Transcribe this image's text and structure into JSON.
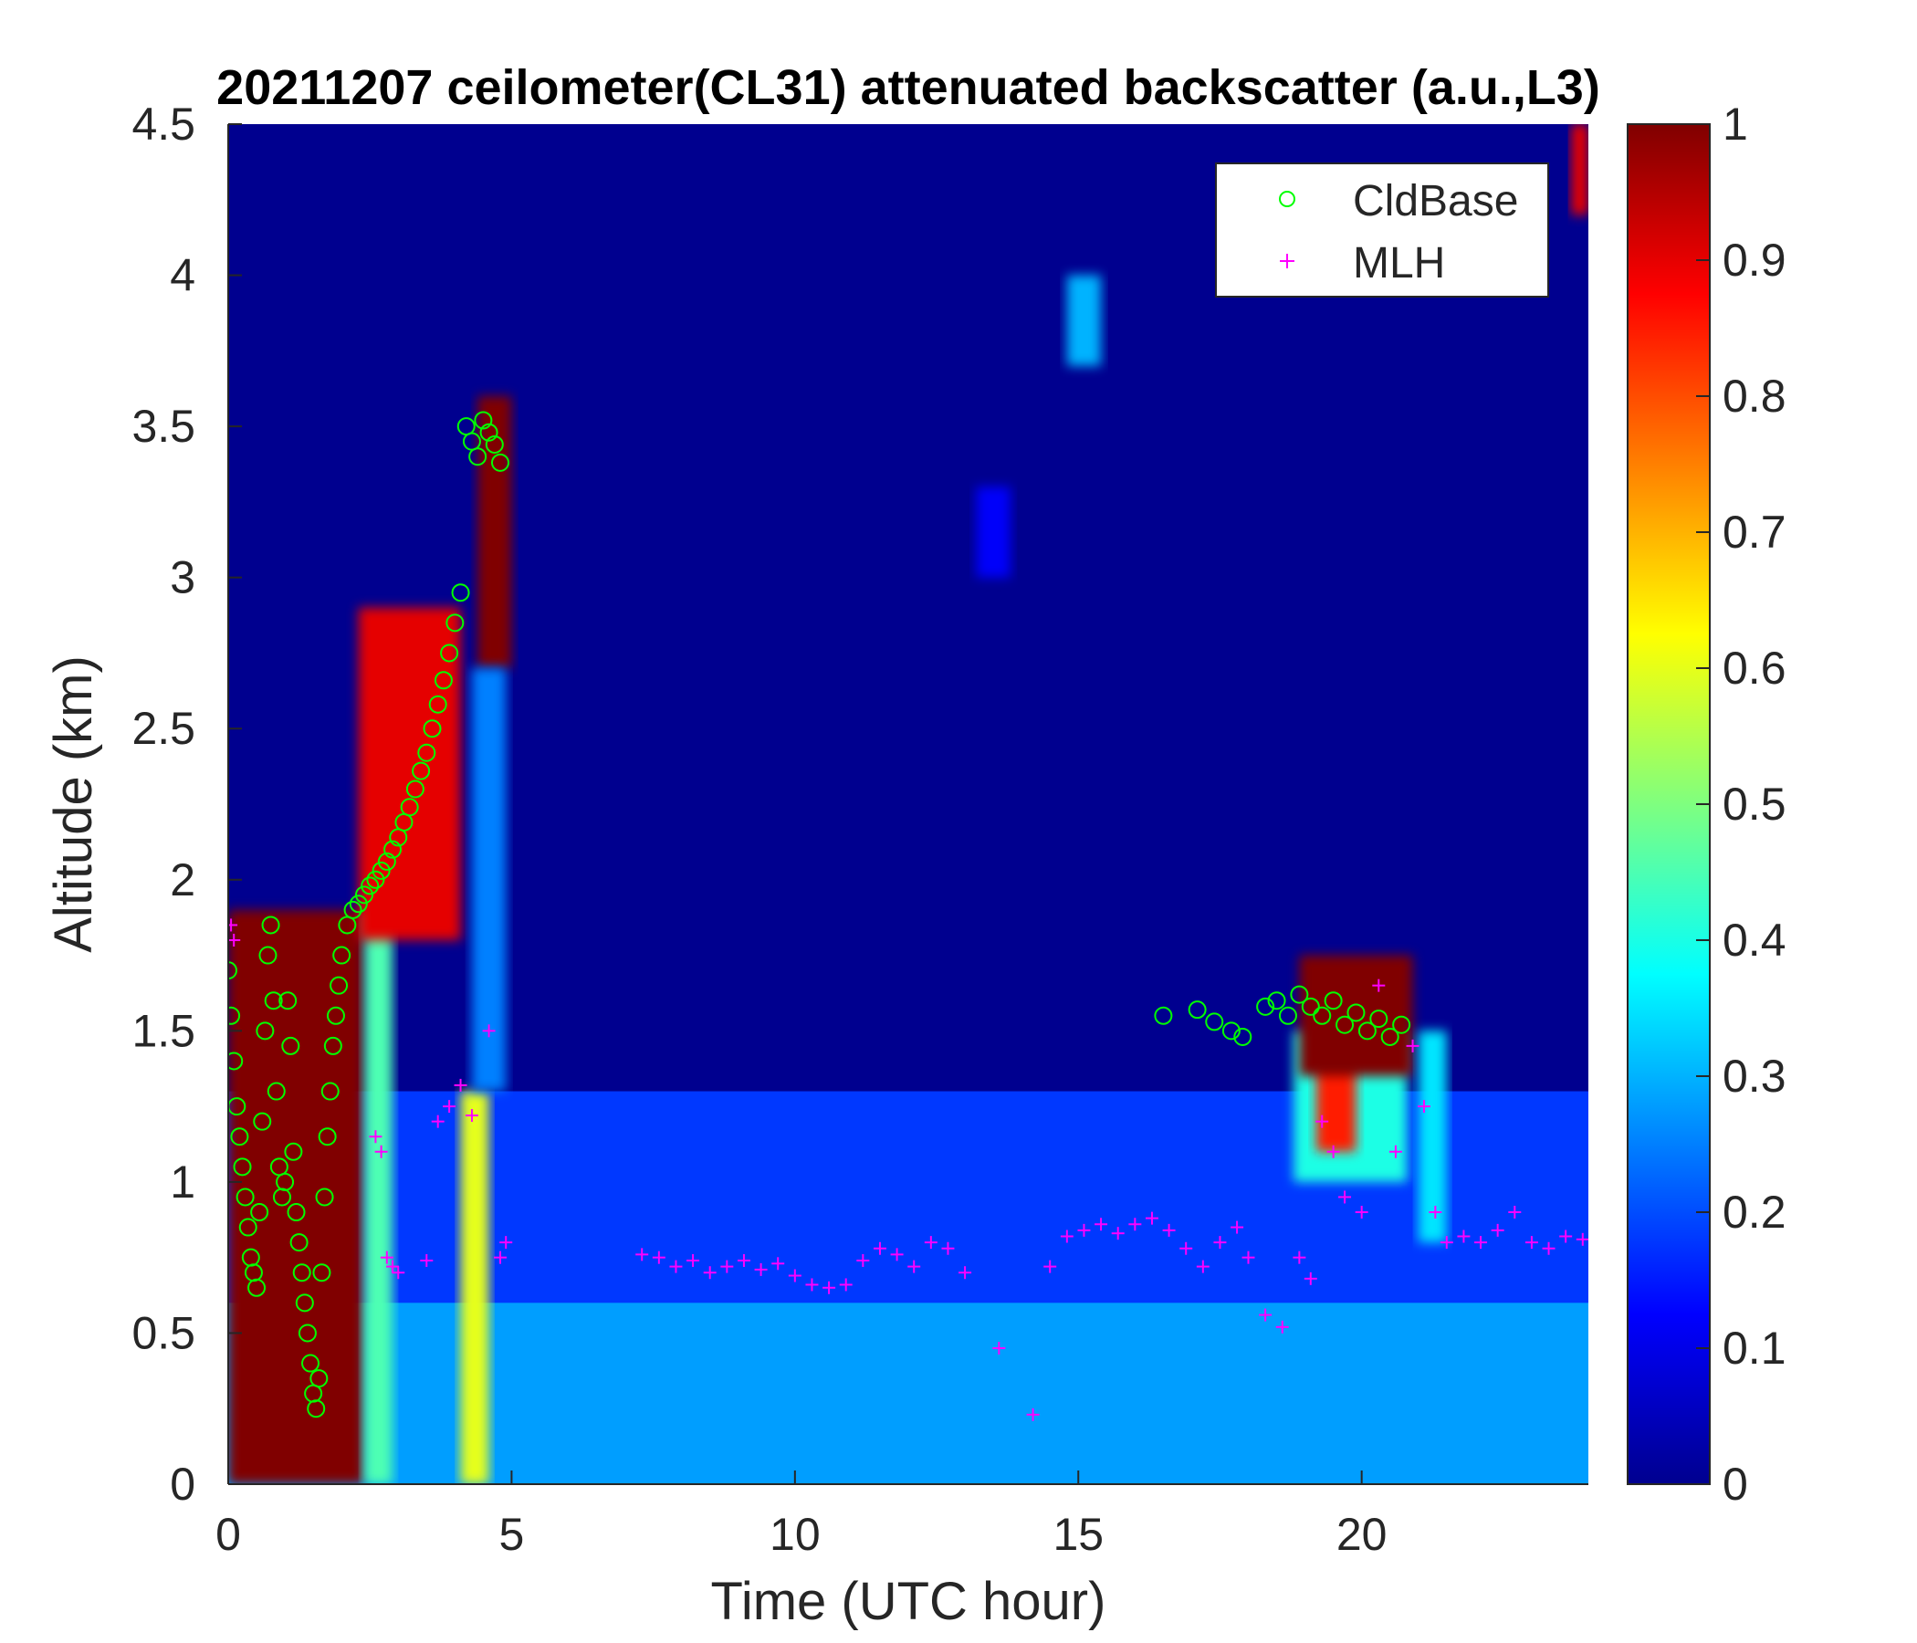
{
  "chart_data": {
    "type": "heatmap",
    "title": "20211207 ceilometer(CL31) attenuated backscatter (a.u.,L3)",
    "xlabel": "Time (UTC hour)",
    "ylabel": "Altitude (km)",
    "xlim": [
      0,
      24
    ],
    "ylim": [
      0,
      4.5
    ],
    "xticks": [
      "0",
      "5",
      "10",
      "15",
      "20"
    ],
    "yticks": [
      "0",
      "0.5",
      "1",
      "1.5",
      "2",
      "2.5",
      "3",
      "3.5",
      "4",
      "4.5"
    ],
    "colorbar": {
      "colormap": "jet",
      "range": [
        0,
        1
      ],
      "ticks": [
        "0",
        "0.1",
        "0.2",
        "0.3",
        "0.4",
        "0.5",
        "0.6",
        "0.7",
        "0.8",
        "0.9",
        "1"
      ]
    },
    "legend": {
      "position": "top-right",
      "entries": [
        {
          "label": "CldBase",
          "marker": "circle",
          "color": "#00ff00"
        },
        {
          "label": "MLH",
          "marker": "plus",
          "color": "#ff00ff"
        }
      ]
    },
    "backscatter_regions": [
      {
        "t0": 0.0,
        "t1": 24.0,
        "z0": 0.0,
        "z1": 1.3,
        "value": 0.18
      },
      {
        "t0": 0.0,
        "t1": 24.0,
        "z0": 0.0,
        "z1": 0.6,
        "value": 0.28
      },
      {
        "t0": 0.0,
        "t1": 2.4,
        "z0": 0.0,
        "z1": 1.9,
        "value": 1.0
      },
      {
        "t0": 2.4,
        "t1": 2.9,
        "z0": 0.0,
        "z1": 1.9,
        "value": 0.45
      },
      {
        "t0": 2.3,
        "t1": 4.1,
        "z0": 1.8,
        "z1": 2.9,
        "value": 0.9
      },
      {
        "t0": 4.1,
        "t1": 4.6,
        "z0": 0.0,
        "z1": 1.3,
        "value": 0.6
      },
      {
        "t0": 4.4,
        "t1": 5.0,
        "z0": 2.7,
        "z1": 3.6,
        "value": 1.0
      },
      {
        "t0": 4.3,
        "t1": 4.9,
        "z0": 1.3,
        "z1": 2.7,
        "value": 0.25
      },
      {
        "t0": 14.8,
        "t1": 15.4,
        "z0": 3.7,
        "z1": 4.0,
        "value": 0.3
      },
      {
        "t0": 13.2,
        "t1": 13.8,
        "z0": 3.0,
        "z1": 3.3,
        "value": 0.12
      },
      {
        "t0": 18.8,
        "t1": 20.8,
        "z0": 1.0,
        "z1": 1.5,
        "value": 0.4
      },
      {
        "t0": 19.2,
        "t1": 19.9,
        "z0": 1.1,
        "z1": 1.4,
        "value": 0.85
      },
      {
        "t0": 18.9,
        "t1": 20.9,
        "z0": 1.35,
        "z1": 1.75,
        "value": 1.0
      },
      {
        "t0": 21.0,
        "t1": 21.5,
        "z0": 0.8,
        "z1": 1.5,
        "value": 0.35
      },
      {
        "t0": 23.7,
        "t1": 24.0,
        "z0": 4.2,
        "z1": 4.5,
        "value": 0.9
      }
    ],
    "series": [
      {
        "name": "CldBase",
        "t": [
          0.0,
          0.05,
          0.1,
          0.15,
          0.2,
          0.25,
          0.3,
          0.35,
          0.4,
          0.45,
          0.5,
          0.55,
          0.6,
          0.65,
          0.7,
          0.75,
          0.8,
          0.85,
          0.9,
          0.95,
          1.0,
          1.05,
          1.1,
          1.15,
          1.2,
          1.25,
          1.3,
          1.35,
          1.4,
          1.45,
          1.5,
          1.55,
          1.6,
          1.65,
          1.7,
          1.75,
          1.8,
          1.85,
          1.9,
          1.95,
          2.0,
          2.1,
          2.2,
          2.3,
          2.4,
          2.5,
          2.6,
          2.7,
          2.8,
          2.9,
          3.0,
          3.1,
          3.2,
          3.3,
          3.4,
          3.5,
          3.6,
          3.7,
          3.8,
          3.9,
          4.0,
          4.1,
          4.2,
          4.3,
          4.4,
          4.5,
          4.6,
          4.7,
          4.8,
          16.5,
          17.1,
          17.4,
          17.7,
          17.9,
          18.3,
          18.5,
          18.7,
          18.9,
          19.1,
          19.3,
          19.5,
          19.7,
          19.9,
          20.1,
          20.3,
          20.5,
          20.7
        ],
        "z": [
          1.7,
          1.55,
          1.4,
          1.25,
          1.15,
          1.05,
          0.95,
          0.85,
          0.75,
          0.7,
          0.65,
          0.9,
          1.2,
          1.5,
          1.75,
          1.85,
          1.6,
          1.3,
          1.05,
          0.95,
          1.0,
          1.6,
          1.45,
          1.1,
          0.9,
          0.8,
          0.7,
          0.6,
          0.5,
          0.4,
          0.3,
          0.25,
          0.35,
          0.7,
          0.95,
          1.15,
          1.3,
          1.45,
          1.55,
          1.65,
          1.75,
          1.85,
          1.9,
          1.92,
          1.95,
          1.98,
          2.0,
          2.03,
          2.06,
          2.1,
          2.14,
          2.19,
          2.24,
          2.3,
          2.36,
          2.42,
          2.5,
          2.58,
          2.66,
          2.75,
          2.85,
          2.95,
          3.5,
          3.45,
          3.4,
          3.52,
          3.48,
          3.44,
          3.38,
          1.55,
          1.57,
          1.53,
          1.5,
          1.48,
          1.58,
          1.6,
          1.55,
          1.62,
          1.58,
          1.55,
          1.6,
          1.52,
          1.56,
          1.5,
          1.54,
          1.48,
          1.52
        ]
      },
      {
        "name": "MLH",
        "t": [
          0.05,
          0.1,
          2.6,
          2.7,
          2.8,
          2.9,
          3.0,
          3.5,
          3.7,
          3.9,
          4.1,
          4.3,
          4.6,
          4.8,
          4.9,
          7.3,
          7.6,
          7.9,
          8.2,
          8.5,
          8.8,
          9.1,
          9.4,
          9.7,
          10.0,
          10.3,
          10.6,
          10.9,
          11.2,
          11.5,
          11.8,
          12.1,
          12.4,
          12.7,
          13.0,
          13.6,
          14.2,
          14.5,
          14.8,
          15.1,
          15.4,
          15.7,
          16.0,
          16.3,
          16.6,
          16.9,
          17.2,
          17.5,
          17.8,
          18.0,
          18.3,
          18.6,
          18.9,
          19.1,
          19.3,
          19.5,
          19.7,
          20.0,
          20.3,
          20.6,
          20.9,
          21.1,
          21.3,
          21.5,
          21.8,
          22.1,
          22.4,
          22.7,
          23.0,
          23.3,
          23.6,
          23.9
        ],
        "z": [
          1.85,
          1.8,
          1.15,
          1.1,
          0.75,
          0.72,
          0.7,
          0.74,
          1.2,
          1.25,
          1.32,
          1.22,
          1.5,
          0.75,
          0.8,
          0.76,
          0.75,
          0.72,
          0.74,
          0.7,
          0.72,
          0.74,
          0.71,
          0.73,
          0.69,
          0.66,
          0.65,
          0.66,
          0.74,
          0.78,
          0.76,
          0.72,
          0.8,
          0.78,
          0.7,
          0.45,
          0.23,
          0.72,
          0.82,
          0.84,
          0.86,
          0.83,
          0.86,
          0.88,
          0.84,
          0.78,
          0.72,
          0.8,
          0.85,
          0.75,
          0.56,
          0.52,
          0.75,
          0.68,
          1.2,
          1.1,
          0.95,
          0.9,
          1.65,
          1.1,
          1.45,
          1.25,
          0.9,
          0.8,
          0.82,
          0.8,
          0.84,
          0.9,
          0.8,
          0.78,
          0.82,
          0.81
        ]
      }
    ]
  }
}
